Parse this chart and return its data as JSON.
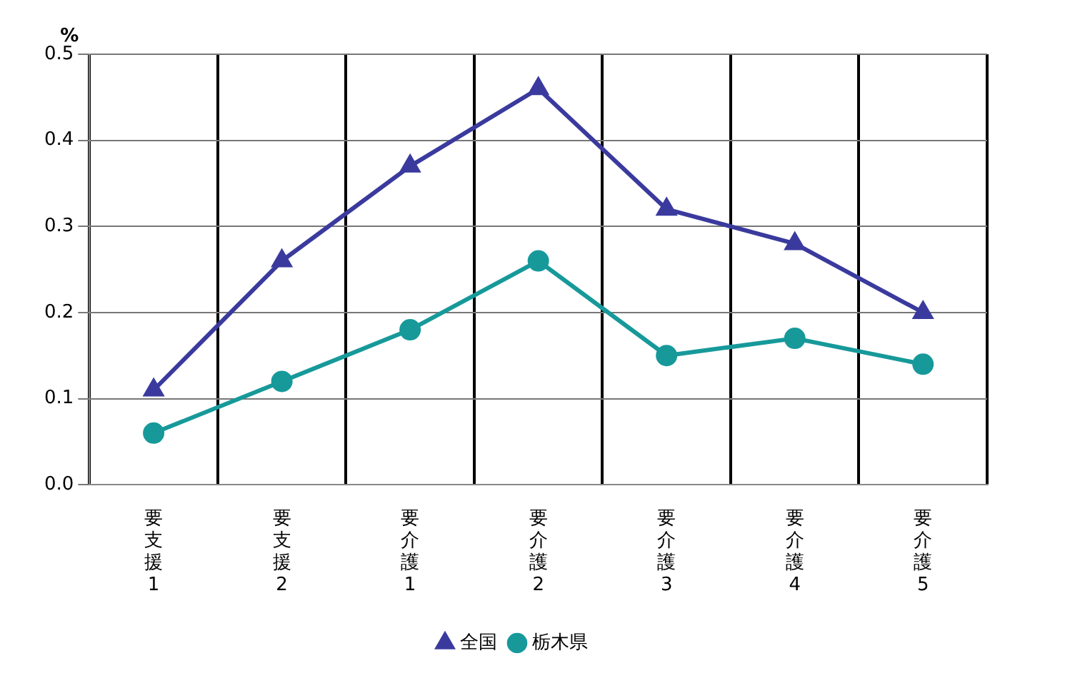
{
  "chart_data": {
    "type": "line",
    "ylabel": "%",
    "categories": [
      "要支援1",
      "要支援2",
      "要介護1",
      "要介護2",
      "要介護3",
      "要介護4",
      "要介護5"
    ],
    "series": [
      {
        "name": "全国",
        "color": "#3a3a9e",
        "values": [
          0.11,
          0.26,
          0.37,
          0.46,
          0.32,
          0.28,
          0.2
        ],
        "marker": "triangle"
      },
      {
        "name": "栃木県",
        "color": "#17999a",
        "values": [
          0.06,
          0.12,
          0.18,
          0.26,
          0.15,
          0.17,
          0.14
        ],
        "marker": "circle"
      }
    ],
    "ylim": [
      0,
      0.5
    ],
    "yticks": [
      {
        "value": 0,
        "label": "0.0"
      },
      {
        "value": 0.1,
        "label": "0.1"
      },
      {
        "value": 0.2,
        "label": "0.2"
      },
      {
        "value": 0.3,
        "label": "0.3"
      },
      {
        "value": 0.4,
        "label": "0.4"
      },
      {
        "value": 0.5,
        "label": "0.5"
      }
    ],
    "grid": true,
    "legend": "bottom"
  }
}
